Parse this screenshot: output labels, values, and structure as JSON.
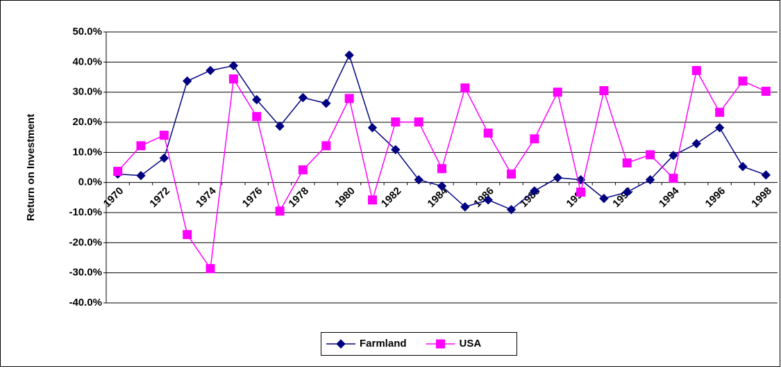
{
  "chart_data": {
    "type": "line",
    "y_axis_label": "Return on Investment",
    "categories": [
      "1970",
      null,
      "1972",
      null,
      "1974",
      null,
      "1976",
      null,
      "1978",
      null,
      "1980",
      null,
      "1982",
      null,
      "1984",
      null,
      "1986",
      null,
      "1988",
      null,
      "1990",
      null,
      "1992",
      null,
      "1994",
      null,
      "1996",
      null,
      "1998"
    ],
    "series": [
      {
        "name": "Farmland",
        "color": "#000080",
        "marker": "diamond",
        "values": [
          2.8,
          2.3,
          8.1,
          33.7,
          37.2,
          38.8,
          27.5,
          18.7,
          28.2,
          26.3,
          42.3,
          18.2,
          10.9,
          0.9,
          -1.2,
          -8.1,
          -5.8,
          -9.0,
          -2.8,
          1.6,
          0.9,
          -5.3,
          -3.2,
          0.9,
          9.0,
          12.9,
          18.2,
          5.3,
          2.5
        ]
      },
      {
        "name": "USA",
        "color": "#ff00ff",
        "marker": "square",
        "values": [
          3.7,
          12.2,
          15.7,
          -17.3,
          -28.6,
          34.4,
          21.9,
          -9.5,
          4.2,
          12.2,
          27.9,
          -5.8,
          20.1,
          20.1,
          4.6,
          31.4,
          16.4,
          2.8,
          14.5,
          30.0,
          -3.2,
          30.5,
          6.5,
          9.2,
          1.4,
          37.2,
          23.3,
          33.7,
          30.3
        ]
      }
    ],
    "ylim": [
      -40,
      50
    ],
    "yticks": [
      {
        "value": -40,
        "label": "-40.0%"
      },
      {
        "value": -30,
        "label": "-30.0%"
      },
      {
        "value": -20,
        "label": "-20.0%"
      },
      {
        "value": -10,
        "label": "-10.0%"
      },
      {
        "value": 0,
        "label": "0.0%"
      },
      {
        "value": 10,
        "label": "10.0%"
      },
      {
        "value": 20,
        "label": "20.0%"
      },
      {
        "value": 30,
        "label": "30.0%"
      },
      {
        "value": 40,
        "label": "40.0%"
      },
      {
        "value": 50,
        "label": "50.0%"
      }
    ],
    "grid": true,
    "legend": "bottom"
  }
}
